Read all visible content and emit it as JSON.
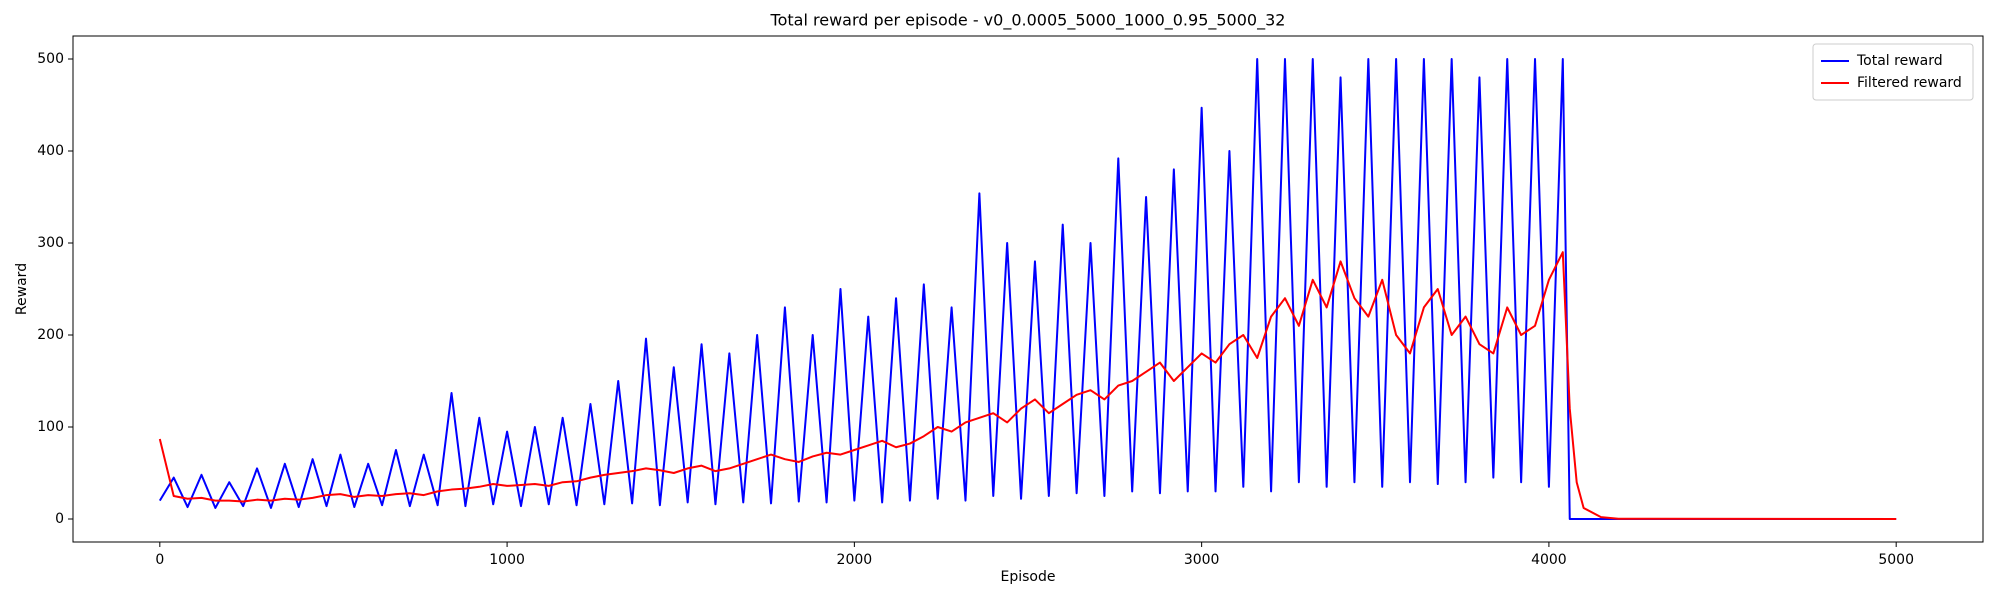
{
  "chart_data": {
    "type": "line",
    "title": "Total reward per episode - v0_0.0005_5000_1000_0.95_5000_32",
    "x_label": "Episode",
    "y_label": "Reward",
    "x": [
      0,
      40,
      80,
      120,
      160,
      200,
      240,
      280,
      320,
      360,
      400,
      440,
      480,
      520,
      560,
      600,
      640,
      680,
      720,
      760,
      800,
      840,
      880,
      920,
      960,
      1000,
      1040,
      1080,
      1120,
      1160,
      1200,
      1240,
      1280,
      1320,
      1360,
      1400,
      1440,
      1480,
      1520,
      1560,
      1600,
      1640,
      1680,
      1720,
      1760,
      1800,
      1840,
      1880,
      1920,
      1960,
      2000,
      2040,
      2080,
      2120,
      2160,
      2200,
      2240,
      2280,
      2320,
      2360,
      2400,
      2440,
      2480,
      2520,
      2560,
      2600,
      2640,
      2680,
      2720,
      2760,
      2800,
      2840,
      2880,
      2920,
      2960,
      3000,
      3040,
      3080,
      3120,
      3160,
      3200,
      3240,
      3280,
      3320,
      3360,
      3400,
      3440,
      3480,
      3520,
      3560,
      3600,
      3640,
      3680,
      3720,
      3760,
      3800,
      3840,
      3880,
      3920,
      3960,
      4000,
      4040,
      4060,
      4080,
      4100,
      4150,
      4200,
      5000
    ],
    "series": [
      {
        "name": "Total reward",
        "color": "#0000ff",
        "values": [
          20,
          45,
          13,
          48,
          12,
          40,
          14,
          55,
          12,
          60,
          13,
          65,
          14,
          70,
          13,
          60,
          15,
          75,
          14,
          70,
          15,
          137,
          14,
          110,
          16,
          95,
          14,
          100,
          16,
          110,
          15,
          125,
          16,
          150,
          17,
          196,
          15,
          165,
          18,
          190,
          16,
          180,
          18,
          200,
          17,
          230,
          19,
          200,
          18,
          250,
          20,
          220,
          18,
          240,
          20,
          255,
          22,
          230,
          20,
          354,
          25,
          300,
          22,
          280,
          25,
          320,
          28,
          300,
          25,
          392,
          30,
          350,
          28,
          380,
          30,
          447,
          30,
          400,
          35,
          500,
          30,
          500,
          40,
          500,
          35,
          480,
          40,
          500,
          35,
          500,
          40,
          500,
          38,
          500,
          40,
          480,
          45,
          500,
          40,
          500,
          35,
          500,
          0,
          0,
          0,
          0,
          0,
          0
        ]
      },
      {
        "name": "Filtered reward",
        "color": "#ff0000",
        "values": [
          87,
          25,
          22,
          23,
          20,
          20,
          19,
          21,
          20,
          22,
          21,
          23,
          26,
          27,
          24,
          26,
          25,
          27,
          28,
          26,
          30,
          32,
          33,
          35,
          38,
          36,
          37,
          38,
          36,
          40,
          41,
          45,
          48,
          50,
          52,
          55,
          53,
          50,
          55,
          58,
          52,
          55,
          60,
          65,
          70,
          65,
          62,
          68,
          72,
          70,
          75,
          80,
          85,
          78,
          82,
          90,
          100,
          95,
          105,
          110,
          115,
          105,
          120,
          130,
          115,
          125,
          135,
          140,
          130,
          145,
          150,
          160,
          170,
          150,
          165,
          180,
          170,
          190,
          200,
          175,
          220,
          240,
          210,
          260,
          230,
          280,
          240,
          220,
          260,
          200,
          180,
          230,
          250,
          200,
          220,
          190,
          180,
          230,
          200,
          210,
          260,
          290,
          120,
          40,
          12,
          2,
          0.3,
          0
        ]
      }
    ],
    "xlim": [
      -250,
      5250
    ],
    "ylim": [
      -25,
      525
    ],
    "xticks": [
      0,
      1000,
      2000,
      3000,
      4000,
      5000
    ],
    "yticks": [
      0,
      100,
      200,
      300,
      400,
      500
    ],
    "legend": "upper right"
  }
}
